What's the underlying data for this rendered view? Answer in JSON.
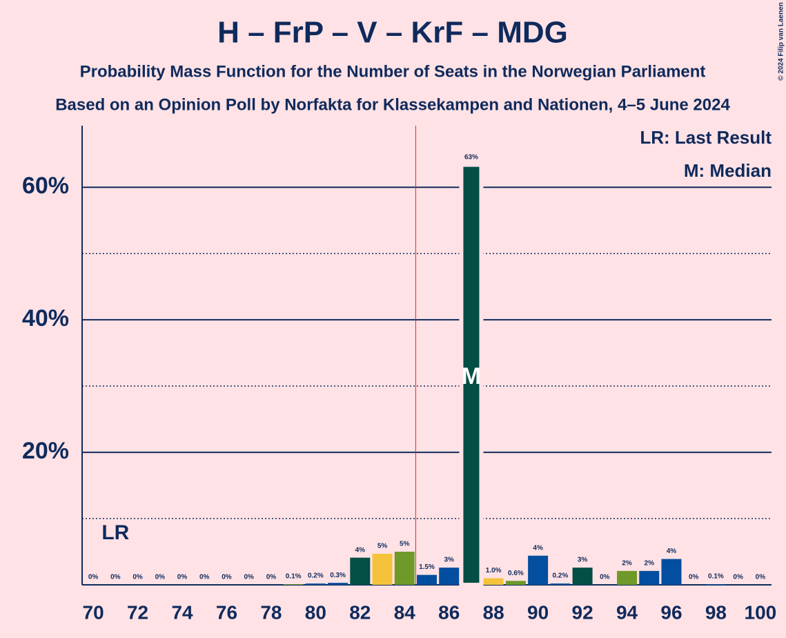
{
  "chart_data": {
    "type": "bar",
    "title": "H – FrP – V – KrF – MDG",
    "subtitle": "Probability Mass Function for the Number of Seats in the Norwegian Parliament",
    "subtitle2": "Based on an Opinion Poll by Norfakta for Klassekampen and Nationen, 4–5 June 2024",
    "copyright": "© 2024 Filip van Laenen",
    "legend": [
      "LR: Last Result",
      "M: Median"
    ],
    "x": [
      70,
      71,
      72,
      73,
      74,
      75,
      76,
      77,
      78,
      79,
      80,
      81,
      82,
      83,
      84,
      85,
      86,
      87,
      88,
      89,
      90,
      91,
      92,
      93,
      94,
      95,
      96,
      97,
      98,
      99,
      100
    ],
    "values": [
      0,
      0,
      0,
      0,
      0,
      0,
      0,
      0,
      0,
      0.1,
      0.2,
      0.3,
      4.1,
      4.7,
      5.0,
      1.5,
      2.6,
      63.4,
      1.0,
      0.6,
      4.4,
      0.2,
      2.6,
      0,
      2.1,
      2.1,
      3.9,
      0,
      0.1,
      0,
      0
    ],
    "value_labels": [
      "0%",
      "0%",
      "0%",
      "0%",
      "0%",
      "0%",
      "0%",
      "0%",
      "0%",
      "0.1%",
      "0.2%",
      "0.3%",
      "4%",
      "5%",
      "5%",
      "1.5%",
      "3%",
      "63%",
      "1.0%",
      "0.6%",
      "4%",
      "0.2%",
      "3%",
      "0%",
      "2%",
      "2%",
      "4%",
      "0%",
      "0.1%",
      "0%",
      "0%"
    ],
    "colors": [
      "#034e9e",
      "#034e9e",
      "#034e9e",
      "#034e9e",
      "#034e9e",
      "#034e9e",
      "#034e9e",
      "#034e9e",
      "#034e9e",
      "#6f9a2a",
      "#034e9e",
      "#034e9e",
      "#034e45",
      "#f5c33b",
      "#6f9a2a",
      "#034e9e",
      "#034e9e",
      "#034e45",
      "#f5c33b",
      "#6f9a2a",
      "#034e9e",
      "#034e9e",
      "#034e45",
      "#034e9e",
      "#6f9a2a",
      "#034e9e",
      "#034e9e",
      "#034e9e",
      "#034e9e",
      "#034e9e",
      "#034e9e"
    ],
    "xlim": [
      69.5,
      100.5
    ],
    "xticks": [
      70,
      72,
      74,
      76,
      78,
      80,
      82,
      84,
      86,
      88,
      90,
      92,
      94,
      96,
      98,
      100
    ],
    "ylim": [
      0,
      69.3
    ],
    "yticks": [
      {
        "value": 20,
        "label": "20%"
      },
      {
        "value": 40,
        "label": "40%"
      },
      {
        "value": 60,
        "label": "60%"
      }
    ],
    "minor_grid": [
      10,
      30,
      50
    ],
    "majority": 84.5,
    "last_result": 71,
    "last_result_label": "LR",
    "median": 87,
    "median_label": "M"
  }
}
